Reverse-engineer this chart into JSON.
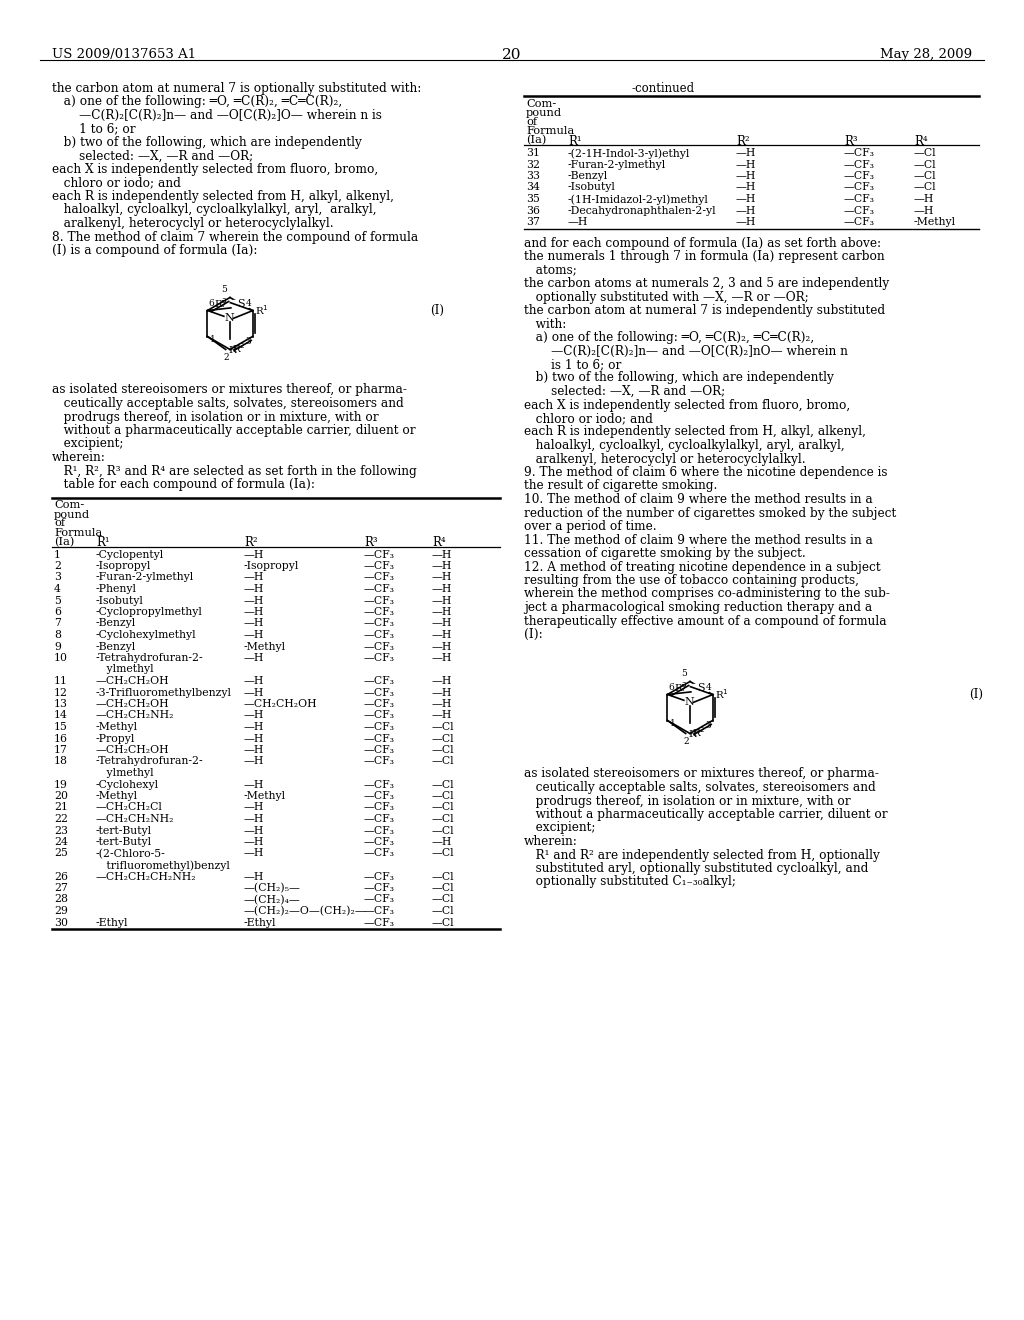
{
  "background_color": "#ffffff",
  "header_left": "US 2009/0137653 A1",
  "header_right": "May 28, 2009",
  "page_number": "20",
  "left_intro": [
    "the carbon atom at numeral 7 is optionally substituted with:",
    "   a) one of the following: ═O, ═C(R)₂, ═C═C(R)₂,",
    "       —C(R)₂[C(R)₂]n— and —O[C(R)₂]O— wherein n is",
    "       1 to 6; or",
    "   b) two of the following, which are independently",
    "       selected: —X, —R and —OR;",
    "each X is independently selected from fluoro, bromo,",
    "   chloro or iodo; and",
    "each R is independently selected from H, alkyl, alkenyl,",
    "   haloalkyl, cycloalkyl, cycloalkylalkyl, aryl,  aralkyl,",
    "   aralkenyl, heterocyclyl or heterocyclylalkyl.",
    "8. The method of claim 7 wherein the compound of formula",
    "(I) is a compound of formula (Ia):"
  ],
  "post_formula_left": [
    "as isolated stereoisomers or mixtures thereof, or pharma-",
    "   ceutically acceptable salts, solvates, stereoisomers and",
    "   prodrugs thereof, in isolation or in mixture, with or",
    "   without a pharmaceutically acceptable carrier, diluent or",
    "   excipient;",
    "wherein:",
    "   R¹, R², R³ and R⁴ are selected as set forth in the following",
    "   table for each compound of formula (Ia):"
  ],
  "left_table_rows": [
    [
      "1",
      "-Cyclopentyl",
      "—H",
      "—CF₃",
      "—H"
    ],
    [
      "2",
      "-Isopropyl",
      "-Isopropyl",
      "—CF₃",
      "—H"
    ],
    [
      "3",
      "-Furan-2-ylmethyl",
      "—H",
      "—CF₃",
      "—H"
    ],
    [
      "4",
      "-Phenyl",
      "—H",
      "—CF₃",
      "—H"
    ],
    [
      "5",
      "-Isobutyl",
      "—H",
      "—CF₃",
      "—H"
    ],
    [
      "6",
      "-Cyclopropylmethyl",
      "—H",
      "—CF₃",
      "—H"
    ],
    [
      "7",
      "-Benzyl",
      "—H",
      "—CF₃",
      "—H"
    ],
    [
      "8",
      "-Cyclohexylmethyl",
      "—H",
      "—CF₃",
      "—H"
    ],
    [
      "9",
      "-Benzyl",
      "-Methyl",
      "—CF₃",
      "—H"
    ],
    [
      "10a",
      "-Tetrahydrofuran-2-",
      "—H",
      "—CF₃",
      "—H"
    ],
    [
      "10b",
      "   ylmethyl",
      "",
      "",
      ""
    ],
    [
      "11",
      "—CH₂CH₂OH",
      "—H",
      "—CF₃",
      "—H"
    ],
    [
      "12",
      "-3-Trifluoromethylbenzyl",
      "—H",
      "—CF₃",
      "—H"
    ],
    [
      "13",
      "—CH₂CH₂OH",
      "—CH₂CH₂OH",
      "—CF₃",
      "—H"
    ],
    [
      "14",
      "—CH₂CH₂NH₂",
      "—H",
      "—CF₃",
      "—H"
    ],
    [
      "15",
      "-Methyl",
      "—H",
      "—CF₃",
      "—Cl"
    ],
    [
      "16",
      "-Propyl",
      "—H",
      "—CF₃",
      "—Cl"
    ],
    [
      "17",
      "—CH₂CH₂OH",
      "—H",
      "—CF₃",
      "—Cl"
    ],
    [
      "18a",
      "-Tetrahydrofuran-2-",
      "—H",
      "—CF₃",
      "—Cl"
    ],
    [
      "18b",
      "   ylmethyl",
      "",
      "",
      ""
    ],
    [
      "19",
      "-Cyclohexyl",
      "—H",
      "—CF₃",
      "—Cl"
    ],
    [
      "20",
      "-Methyl",
      "-Methyl",
      "—CF₃",
      "—Cl"
    ],
    [
      "21",
      "—CH₂CH₂Cl",
      "—H",
      "—CF₃",
      "—Cl"
    ],
    [
      "22",
      "—CH₂CH₂NH₂",
      "—H",
      "—CF₃",
      "—Cl"
    ],
    [
      "23",
      "-tert-Butyl",
      "—H",
      "—CF₃",
      "—Cl"
    ],
    [
      "24",
      "-tert-Butyl",
      "—H",
      "—CF₃",
      "—H"
    ],
    [
      "25a",
      "-(2-Chloro-5-",
      "—H",
      "—CF₃",
      "—Cl"
    ],
    [
      "25b",
      "   trifluoromethyl)benzyl",
      "",
      "",
      ""
    ],
    [
      "26",
      "—CH₂CH₂CH₂NH₂",
      "—H",
      "—CF₃",
      "—Cl"
    ],
    [
      "27",
      "",
      "—(CH₂)₅—",
      "—CF₃",
      "—Cl"
    ],
    [
      "28",
      "",
      "—(CH₂)₄—",
      "—CF₃",
      "—Cl"
    ],
    [
      "29",
      "",
      "—(CH₂)₂—O—(CH₂)₂—",
      "—CF₃",
      "—Cl"
    ],
    [
      "30",
      "-Ethyl",
      "-Ethyl",
      "—CF₃",
      "—Cl"
    ]
  ],
  "right_table_rows": [
    [
      "31",
      "-(2-1H-Indol-3-yl)ethyl",
      "—H",
      "—CF₃",
      "—Cl"
    ],
    [
      "32",
      "-Furan-2-ylmethyl",
      "—H",
      "—CF₃",
      "—Cl"
    ],
    [
      "33",
      "-Benzyl",
      "—H",
      "—CF₃",
      "—Cl"
    ],
    [
      "34",
      "-Isobutyl",
      "—H",
      "—CF₃",
      "—Cl"
    ],
    [
      "35",
      "-(1H-Imidazol-2-yl)methyl",
      "—H",
      "—CF₃",
      "—H"
    ],
    [
      "36",
      "-Decahydronaphthalen-2-yl",
      "—H",
      "—CF₃",
      "—H"
    ],
    [
      "37",
      "—H",
      "—H",
      "—CF₃",
      "-Methyl"
    ]
  ],
  "right_post_table": [
    "and for each compound of formula (Ia) as set forth above:",
    "the numerals 1 through 7 in formula (Ia) represent carbon",
    "   atoms;",
    "the carbon atoms at numerals 2, 3 and 5 are independently",
    "   optionally substituted with —X, —R or —OR;",
    "the carbon atom at numeral 7 is independently substituted",
    "   with:",
    "   a) one of the following: ═O, ═C(R)₂, ═C═C(R)₂,",
    "       —C(R)₂[C(R)₂]n— and —O[C(R)₂]nO— wherein n",
    "       is 1 to 6; or",
    "   b) two of the following, which are independently",
    "       selected: —X, —R and —OR;",
    "each X is independently selected from fluoro, bromo,",
    "   chloro or iodo; and",
    "each R is independently selected from H, alkyl, alkenyl,",
    "   haloalkyl, cycloalkyl, cycloalkylalkyl, aryl, aralkyl,",
    "   aralkenyl, heterocyclyl or heterocyclylalkyl.",
    "9. The method of claim 6 where the nicotine dependence is",
    "the result of cigarette smoking.",
    "10. The method of claim 9 where the method results in a",
    "reduction of the number of cigarettes smoked by the subject",
    "over a period of time.",
    "11. The method of claim 9 where the method results in a",
    "cessation of cigarette smoking by the subject.",
    "12. A method of treating nicotine dependence in a subject",
    "resulting from the use of tobacco containing products,",
    "wherein the method comprises co-administering to the sub-",
    "ject a pharmacological smoking reduction therapy and a",
    "therapeutically effective amount of a compound of formula",
    "(I):"
  ],
  "right_post_formula": [
    "as isolated stereoisomers or mixtures thereof, or pharma-",
    "   ceutically acceptable salts, solvates, stereoisomers and",
    "   prodrugs thereof, in isolation or in mixture, with or",
    "   without a pharmaceutically acceptable carrier, diluent or",
    "   excipient;",
    "wherein:",
    "   R¹ and R² are independently selected from H, optionally",
    "   substituted aryl, optionally substituted cycloalkyl, and",
    "   optionally substituted C₁₋₃₀alkyl;"
  ]
}
